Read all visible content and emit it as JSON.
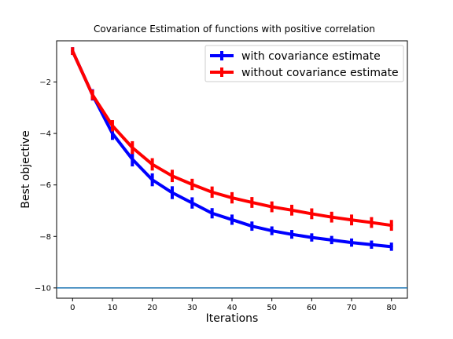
{
  "chart_data": {
    "type": "line",
    "title": "Covariance Estimation of functions with positive correlation",
    "xlabel": "Iterations",
    "ylabel": "Best objective",
    "xlim": [
      -4,
      84
    ],
    "ylim": [
      -10.4,
      -0.4
    ],
    "xticks": [
      0,
      10,
      20,
      30,
      40,
      50,
      60,
      70,
      80
    ],
    "yticks": [
      -10,
      -8,
      -6,
      -4,
      -2
    ],
    "ytick_labels": [
      "−10",
      "−8",
      "−6",
      "−4",
      "−2"
    ],
    "legend_position": "top-right",
    "grid": false,
    "x": [
      0,
      5,
      10,
      15,
      20,
      25,
      30,
      35,
      40,
      45,
      50,
      55,
      60,
      65,
      70,
      75,
      80
    ],
    "series": [
      {
        "name": "with covariance estimate",
        "color": "#0000ff",
        "values": [
          -0.8,
          -2.5,
          -4.0,
          -5.0,
          -5.8,
          -6.3,
          -6.7,
          -7.1,
          -7.35,
          -7.6,
          -7.78,
          -7.92,
          -8.04,
          -8.14,
          -8.24,
          -8.32,
          -8.4
        ],
        "errors": [
          0.15,
          0.22,
          0.25,
          0.28,
          0.25,
          0.25,
          0.22,
          0.2,
          0.2,
          0.18,
          0.17,
          0.17,
          0.16,
          0.16,
          0.16,
          0.16,
          0.16
        ]
      },
      {
        "name": "without covariance estimate",
        "color": "#ff0000",
        "values": [
          -0.8,
          -2.5,
          -3.7,
          -4.55,
          -5.2,
          -5.65,
          -5.98,
          -6.28,
          -6.5,
          -6.68,
          -6.85,
          -6.98,
          -7.12,
          -7.25,
          -7.36,
          -7.46,
          -7.57
        ],
        "errors": [
          0.15,
          0.2,
          0.22,
          0.25,
          0.24,
          0.24,
          0.22,
          0.22,
          0.22,
          0.21,
          0.21,
          0.21,
          0.21,
          0.21,
          0.21,
          0.21,
          0.21
        ]
      }
    ],
    "reference_line": {
      "y": -10,
      "color": "#1f77b4"
    }
  }
}
